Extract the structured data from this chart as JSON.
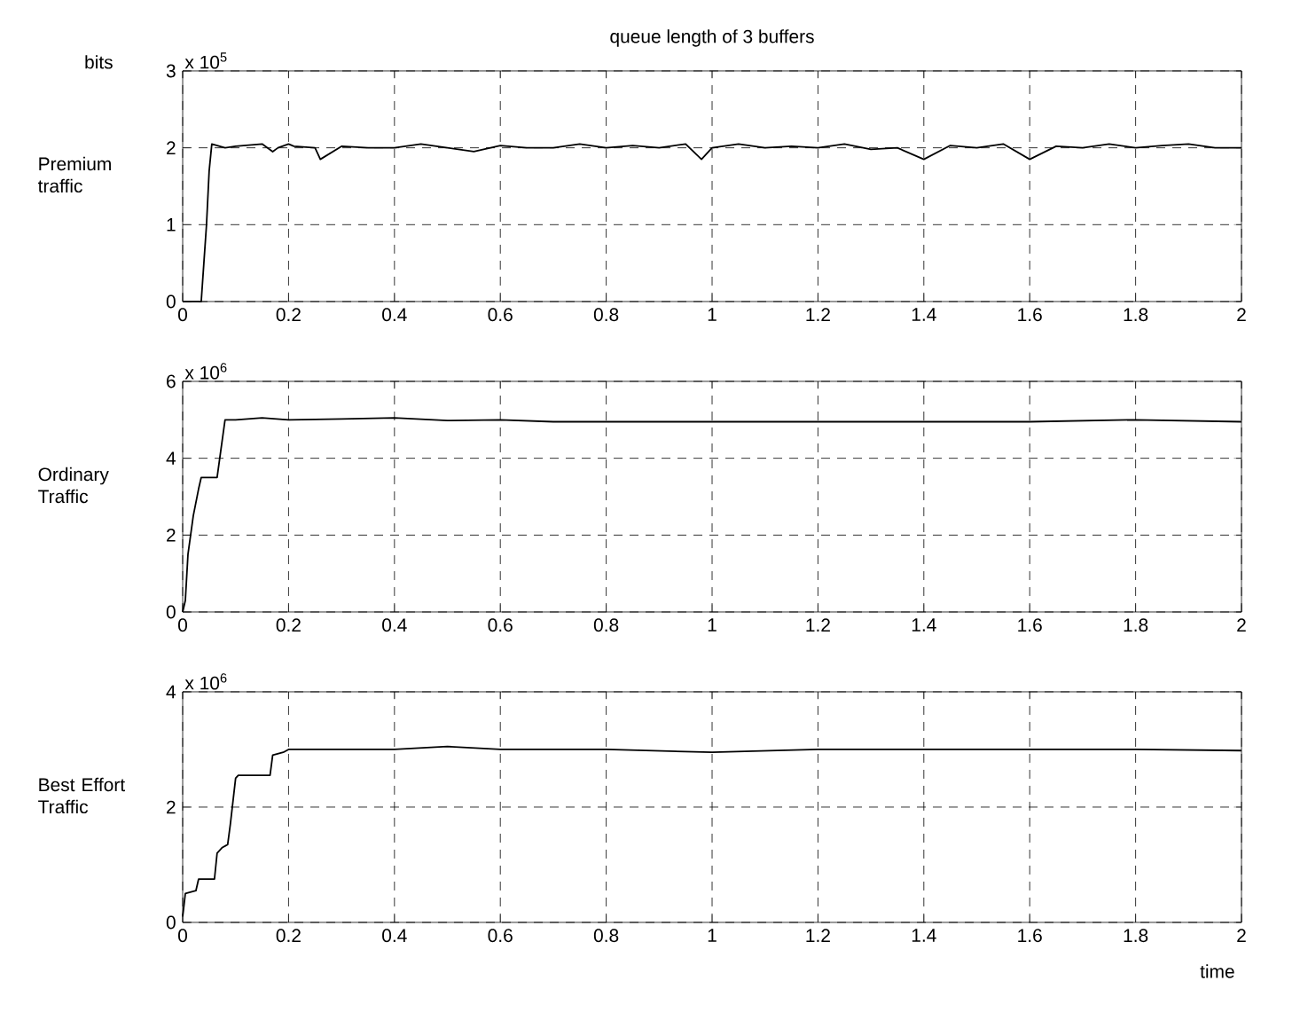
{
  "chart_data": [
    {
      "type": "line",
      "title": "queue length of 3 buffers",
      "ylabel": "Premium traffic",
      "annotations": [
        "bits",
        "x 10$^{5}$"
      ],
      "grid": true,
      "xlim": [
        0,
        2
      ],
      "ylim": [
        0,
        3
      ],
      "xticks": [
        0,
        0.2,
        0.4,
        0.6,
        0.8,
        1,
        1.2,
        1.4,
        1.6,
        1.8,
        2
      ],
      "yticks": [
        0,
        1,
        2,
        3
      ],
      "x": [
        0,
        0.035,
        0.04,
        0.045,
        0.05,
        0.055,
        0.08,
        0.1,
        0.15,
        0.17,
        0.18,
        0.2,
        0.21,
        0.25,
        0.26,
        0.3,
        0.35,
        0.4,
        0.45,
        0.5,
        0.55,
        0.6,
        0.65,
        0.7,
        0.75,
        0.8,
        0.85,
        0.9,
        0.95,
        0.98,
        1.0,
        1.05,
        1.1,
        1.15,
        1.2,
        1.25,
        1.3,
        1.35,
        1.4,
        1.45,
        1.5,
        1.55,
        1.6,
        1.65,
        1.7,
        1.75,
        1.8,
        1.85,
        1.9,
        1.95,
        2.0
      ],
      "series": [
        {
          "color": "#000000",
          "values": [
            0,
            0,
            0.5,
            1.0,
            1.7,
            2.05,
            2.0,
            2.02,
            2.05,
            1.95,
            2.0,
            2.05,
            2.02,
            2.0,
            1.85,
            2.02,
            2.0,
            2.0,
            2.05,
            2.0,
            1.95,
            2.03,
            2.0,
            2.0,
            2.05,
            2.0,
            2.03,
            2.0,
            2.05,
            1.85,
            2.0,
            2.05,
            2.0,
            2.02,
            2.0,
            2.05,
            1.98,
            2.0,
            1.85,
            2.03,
            2.0,
            2.05,
            1.85,
            2.02,
            2.0,
            2.05,
            2.0,
            2.03,
            2.05,
            2.0,
            2.0
          ]
        }
      ]
    },
    {
      "type": "line",
      "ylabel": "Ordinary Traffic",
      "annotations": [
        "x 10$^{6}$"
      ],
      "grid": true,
      "xlim": [
        0,
        2
      ],
      "ylim": [
        0,
        6
      ],
      "xticks": [
        0,
        0.2,
        0.4,
        0.6,
        0.8,
        1,
        1.2,
        1.4,
        1.6,
        1.8,
        2
      ],
      "yticks": [
        0,
        2,
        4,
        6
      ],
      "x": [
        0,
        0.005,
        0.01,
        0.015,
        0.02,
        0.03,
        0.035,
        0.065,
        0.075,
        0.08,
        0.1,
        0.15,
        0.2,
        0.3,
        0.4,
        0.5,
        0.6,
        0.7,
        0.8,
        0.9,
        1.0,
        1.2,
        1.4,
        1.6,
        1.8,
        2.0
      ],
      "series": [
        {
          "color": "#000000",
          "values": [
            0,
            0.3,
            1.5,
            2.0,
            2.5,
            3.2,
            3.5,
            3.5,
            4.5,
            5.0,
            5.0,
            5.05,
            5.0,
            5.02,
            5.05,
            4.98,
            5.0,
            4.95,
            4.95,
            4.95,
            4.95,
            4.95,
            4.95,
            4.95,
            5.0,
            4.95
          ]
        }
      ]
    },
    {
      "type": "line",
      "ylabel": "Best Effort Traffic",
      "xlabel": "time",
      "annotations": [
        "x 10$^{6}$"
      ],
      "grid": true,
      "xlim": [
        0,
        2
      ],
      "ylim": [
        0,
        4
      ],
      "xticks": [
        0,
        0.2,
        0.4,
        0.6,
        0.8,
        1,
        1.2,
        1.4,
        1.6,
        1.8,
        2
      ],
      "yticks": [
        0,
        2,
        4
      ],
      "x": [
        0,
        0.005,
        0.025,
        0.03,
        0.06,
        0.065,
        0.075,
        0.085,
        0.09,
        0.1,
        0.105,
        0.165,
        0.17,
        0.19,
        0.2,
        0.3,
        0.4,
        0.5,
        0.6,
        0.8,
        1.0,
        1.2,
        1.4,
        1.6,
        1.8,
        2.0
      ],
      "series": [
        {
          "color": "#000000",
          "values": [
            0.1,
            0.5,
            0.55,
            0.75,
            0.75,
            1.2,
            1.3,
            1.35,
            1.7,
            2.5,
            2.55,
            2.55,
            2.9,
            2.95,
            3.0,
            3.0,
            3.0,
            3.05,
            3.0,
            3.0,
            2.95,
            3.0,
            3.0,
            3.0,
            3.0,
            2.98
          ]
        }
      ]
    }
  ]
}
